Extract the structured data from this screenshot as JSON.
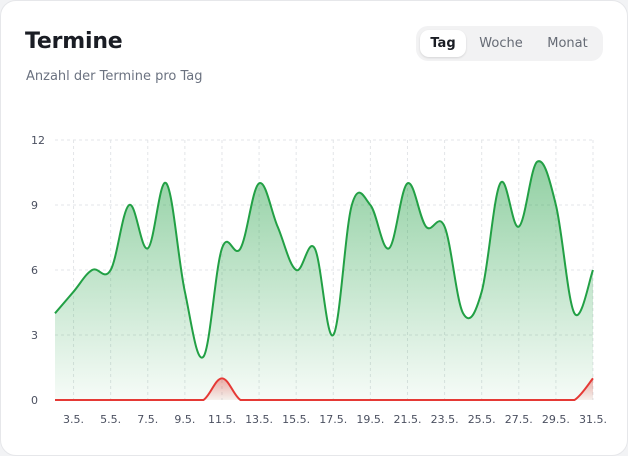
{
  "card": {
    "title": "Termine",
    "subtitle": "Anzahl der Termine pro Tag"
  },
  "tabs": [
    {
      "label": "Tag",
      "active": true
    },
    {
      "label": "Woche",
      "active": false
    },
    {
      "label": "Monat",
      "active": false
    }
  ],
  "colors": {
    "green": "#22a045",
    "red": "#e53935",
    "grid": "#e3e5e8"
  },
  "chart_data": {
    "type": "area",
    "x": [
      "2.5.",
      "3.5.",
      "4.5.",
      "5.5.",
      "6.5.",
      "7.5.",
      "8.5.",
      "9.5.",
      "10.5.",
      "11.5.",
      "12.5.",
      "13.5.",
      "14.5.",
      "15.5.",
      "16.5.",
      "17.5.",
      "18.5.",
      "19.5.",
      "20.5.",
      "21.5.",
      "22.5.",
      "23.5.",
      "24.5.",
      "25.5.",
      "26.5.",
      "27.5.",
      "28.5.",
      "29.5.",
      "30.5.",
      "31.5."
    ],
    "xticks": [
      "3.5.",
      "5.5.",
      "7.5.",
      "9.5.",
      "11.5.",
      "13.5.",
      "15.5.",
      "17.5.",
      "19.5.",
      "21.5.",
      "23.5.",
      "25.5.",
      "27.5.",
      "29.5.",
      "31.5."
    ],
    "yticks": [
      0,
      3,
      6,
      9,
      12
    ],
    "ylim": [
      0,
      12
    ],
    "grid": true,
    "series": [
      {
        "values": [
          4,
          5,
          6,
          6,
          9,
          7,
          10,
          5,
          2,
          7,
          7,
          10,
          8,
          6,
          7,
          3,
          9,
          9,
          7,
          10,
          8,
          8,
          4,
          5,
          10,
          8,
          11,
          9,
          4,
          6
        ],
        "color": "#22a045",
        "fill": true
      },
      {
        "values": [
          0,
          0,
          0,
          0,
          0,
          0,
          0,
          0,
          0,
          1,
          0,
          0,
          0,
          0,
          0,
          0,
          0,
          0,
          0,
          0,
          0,
          0,
          0,
          0,
          0,
          0,
          0,
          0,
          0,
          1
        ],
        "color": "#e53935",
        "fill": true
      }
    ]
  }
}
